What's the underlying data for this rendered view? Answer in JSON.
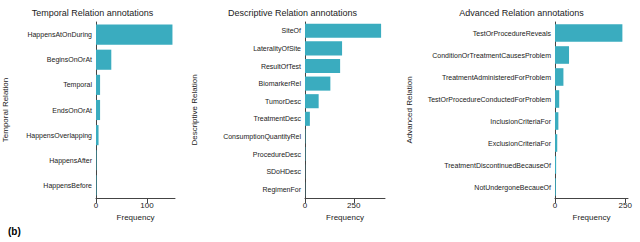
{
  "figure_label": "(b)",
  "chart_data": [
    {
      "type": "bar",
      "title": "Temporal Relation annotations",
      "xlabel": "Frequency",
      "ylabel": "Temporal Relation",
      "categories": [
        "HappensAtOnDuring",
        "BeginsOnOrAt",
        "Temporal",
        "EndsOnOrAt",
        "HappensOverlapping",
        "HappensAfter",
        "HappensBefore"
      ],
      "values": [
        150,
        30,
        8,
        8,
        5,
        1,
        1
      ],
      "color": "#3aacbf",
      "orientation": "horizontal",
      "grid": false,
      "xlim": [
        0,
        155
      ],
      "xticks": [
        0,
        100
      ]
    },
    {
      "type": "bar",
      "title": "Descriptive Relation annotations",
      "xlabel": "Frequency",
      "ylabel": "Descriptive Relation",
      "categories": [
        "SiteOf",
        "LateralityOfSite",
        "ResultOfTest",
        "BiomarkerRel",
        "TumorDesc",
        "TreatmentDesc",
        "ConsumptionQuantityRel",
        "ProcedureDesc",
        "SDoHDesc",
        "RegimenFor"
      ],
      "values": [
        390,
        190,
        180,
        130,
        70,
        25,
        2,
        2,
        1,
        1
      ],
      "color": "#3aacbf",
      "orientation": "horizontal",
      "grid": false,
      "xlim": [
        0,
        410
      ],
      "xticks": [
        0,
        250
      ]
    },
    {
      "type": "bar",
      "title": "Advanced Relation annotations",
      "xlabel": "Frequency",
      "ylabel": "Advanced Relation",
      "categories": [
        "TestOrProcedureReveals",
        "ConditionOrTreatmentCausesProblem",
        "TreatmentAdministeredForProblem",
        "TestOrProcedureConductedForProblem",
        "InclusionCriteriaFor",
        "ExclusionCriteriaFor",
        "TreatmentDiscontinuedBecauseOf",
        "NotUndergoneBecaueOf"
      ],
      "values": [
        240,
        50,
        30,
        15,
        12,
        8,
        4,
        3
      ],
      "color": "#3aacbf",
      "orientation": "horizontal",
      "grid": false,
      "xlim": [
        0,
        260
      ],
      "xticks": [
        0,
        250
      ]
    }
  ]
}
